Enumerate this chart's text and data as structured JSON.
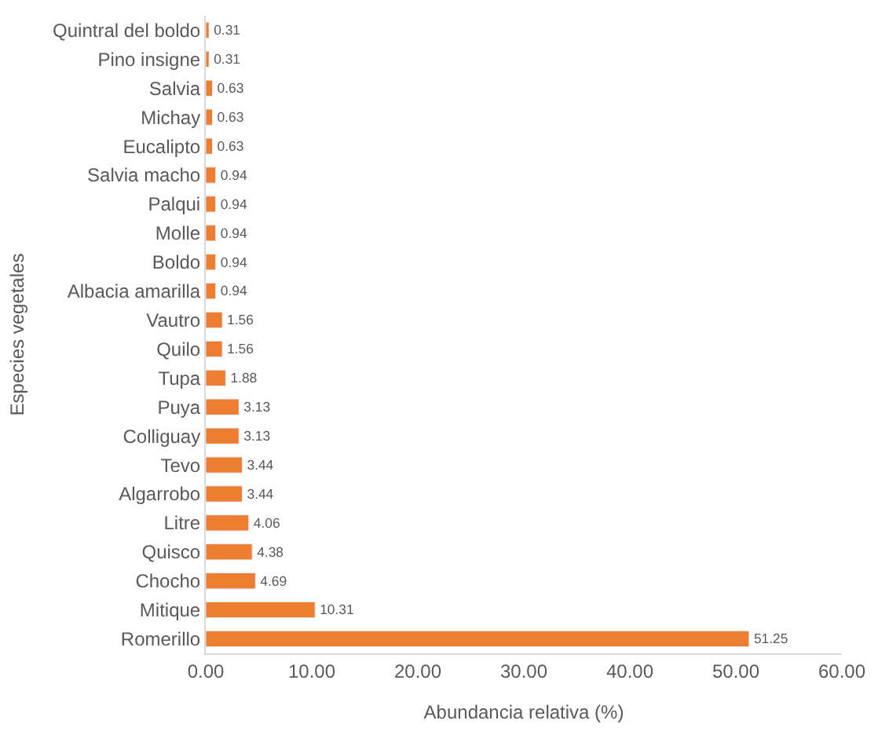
{
  "chart_data": {
    "type": "bar",
    "orientation": "horizontal",
    "xlabel": "Abundancia relativa (%)",
    "ylabel": "Especies vegetales",
    "categories": [
      "Quintral del boldo",
      "Pino insigne",
      "Salvia",
      "Michay",
      "Eucalipto",
      "Salvia macho",
      "Palqui",
      "Molle",
      "Boldo",
      "Albacia amarilla",
      "Vautro",
      "Quilo",
      "Tupa",
      "Puya",
      "Colliguay",
      "Tevo",
      "Algarrobo",
      "Litre",
      "Quisco",
      "Chocho",
      "Mitique",
      "Romerillo"
    ],
    "values": [
      0.31,
      0.31,
      0.63,
      0.63,
      0.63,
      0.94,
      0.94,
      0.94,
      0.94,
      0.94,
      1.56,
      1.56,
      1.88,
      3.13,
      3.13,
      3.44,
      3.44,
      4.06,
      4.38,
      4.69,
      10.31,
      51.25
    ],
    "color": "#ed7d31",
    "data_labels": true,
    "xlim": [
      0,
      60
    ],
    "xticks": [
      {
        "value": 0,
        "label": "0.00"
      },
      {
        "value": 10,
        "label": "10.00"
      },
      {
        "value": 20,
        "label": "20.00"
      },
      {
        "value": 30,
        "label": "30.00"
      },
      {
        "value": 40,
        "label": "40.00"
      },
      {
        "value": 50,
        "label": "50.00"
      },
      {
        "value": 60,
        "label": "60.00"
      }
    ]
  }
}
